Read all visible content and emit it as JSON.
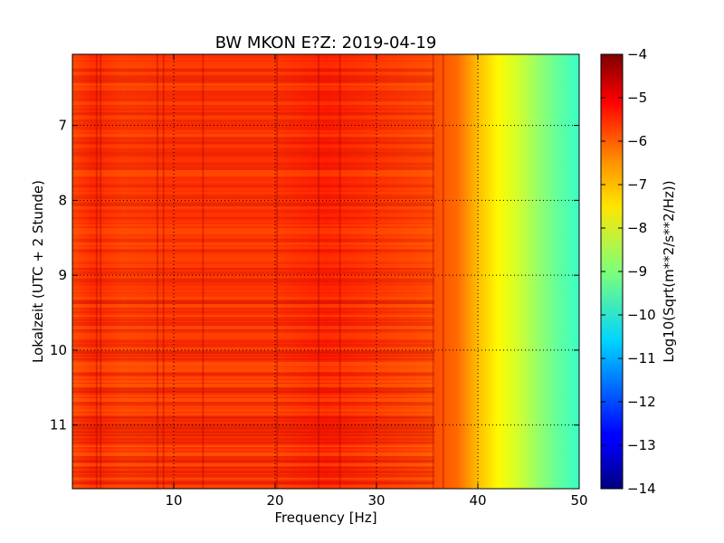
{
  "chart_data": {
    "type": "heatmap",
    "title": "BW MKON E?Z: 2019-04-19",
    "xlabel": "Frequency [Hz]",
    "ylabel": "Lokalzeit (UTC + 2 Stunde)",
    "xlim": [
      0,
      50
    ],
    "ylim": [
      6.05,
      11.85
    ],
    "y_inverted": true,
    "x_ticks": [
      "10",
      "20",
      "30",
      "40",
      "50"
    ],
    "x_tick_values": [
      10,
      20,
      30,
      40,
      50
    ],
    "y_ticks": [
      "7",
      "8",
      "9",
      "10",
      "11"
    ],
    "y_tick_values": [
      7,
      8,
      9,
      10,
      11
    ],
    "grid": true,
    "colormap": "jet",
    "colorbar": {
      "label": "Log10(Sqrt(m**2/s**2/Hz))",
      "range": [
        -14,
        -4
      ],
      "ticks": [
        "−4",
        "−5",
        "−6",
        "−7",
        "−8",
        "−9",
        "−10",
        "−11",
        "−12",
        "−13",
        "−14"
      ],
      "tick_values": [
        -4,
        -5,
        -6,
        -7,
        -8,
        -9,
        -10,
        -11,
        -12,
        -13,
        -14
      ]
    },
    "profile": {
      "frequency_hz": [
        0,
        2,
        5,
        10,
        15,
        20,
        25,
        30,
        35,
        38,
        40,
        42,
        44,
        46,
        48,
        50
      ],
      "log10_amplitude": [
        -5.9,
        -5.6,
        -5.8,
        -5.7,
        -5.7,
        -5.7,
        -5.5,
        -5.7,
        -5.9,
        -6.3,
        -7.1,
        -7.7,
        -8.2,
        -8.8,
        -9.3,
        -9.7
      ]
    }
  }
}
